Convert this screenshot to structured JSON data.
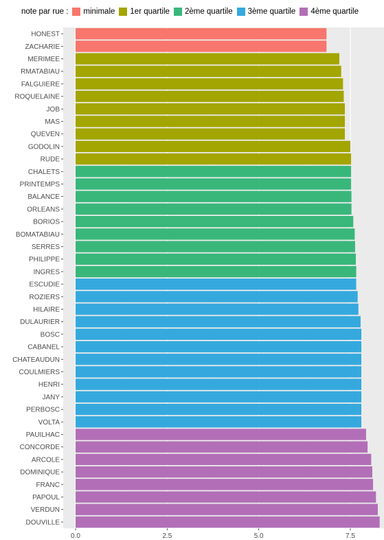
{
  "legend": {
    "title": "note par rue :",
    "position": "top",
    "entries": [
      {
        "label": "minimale",
        "color": "#F8766D"
      },
      {
        "label": "1er quartile",
        "color": "#A3A500"
      },
      {
        "label": "2ème quartile",
        "color": "#39B77A"
      },
      {
        "label": "3ème quartile",
        "color": "#35A9DE"
      },
      {
        "label": "4ème quartile",
        "color": "#B26FB7"
      }
    ]
  },
  "chart_data": {
    "type": "bar",
    "orientation": "horizontal",
    "title": "",
    "xlabel": "",
    "ylabel": "",
    "xlim": [
      0,
      8.3
    ],
    "x_ticks": [
      0.0,
      2.5,
      5.0,
      7.5
    ],
    "x_tick_labels": [
      "0.0",
      "2.5",
      "5.0",
      "7.5"
    ],
    "grid": true,
    "panel_background": "#EBEBEB",
    "categories": [
      "HONEST",
      "ZACHARIE",
      "MERIMEE",
      "RMATABIAU",
      "FALGUIERE",
      "ROQUELAINE",
      "JOB",
      "MAS",
      "QUEVEN",
      "GODOLIN",
      "RUDE",
      "CHALETS",
      "PRINTEMPS",
      "BALANCE",
      "ORLEANS",
      "BORIOS",
      "BOMATABIAU",
      "SERRES",
      "PHILIPPE",
      "INGRES",
      "ESCUDIE",
      "ROZIERS",
      "HILAIRE",
      "DULAURIER",
      "BOSC",
      "CABANEL",
      "CHATEAUDUN",
      "COULMIERS",
      "HENRI",
      "JANY",
      "PERBOSC",
      "VOLTA",
      "PAUILHAC",
      "CONCORDE",
      "ARCOLE",
      "DOMINIQUE",
      "FRANC",
      "PAPOUL",
      "VERDUN",
      "DOUVILLE"
    ],
    "values": [
      6.85,
      6.85,
      7.2,
      7.25,
      7.3,
      7.32,
      7.35,
      7.35,
      7.35,
      7.5,
      7.52,
      7.52,
      7.52,
      7.53,
      7.53,
      7.58,
      7.62,
      7.63,
      7.65,
      7.66,
      7.66,
      7.7,
      7.72,
      7.78,
      7.8,
      7.8,
      7.8,
      7.8,
      7.8,
      7.8,
      7.8,
      7.8,
      7.93,
      7.97,
      8.07,
      8.1,
      8.12,
      8.2,
      8.25,
      8.3
    ],
    "groups": [
      "minimale",
      "minimale",
      "1er quartile",
      "1er quartile",
      "1er quartile",
      "1er quartile",
      "1er quartile",
      "1er quartile",
      "1er quartile",
      "1er quartile",
      "1er quartile",
      "2ème quartile",
      "2ème quartile",
      "2ème quartile",
      "2ème quartile",
      "2ème quartile",
      "2ème quartile",
      "2ème quartile",
      "2ème quartile",
      "2ème quartile",
      "3ème quartile",
      "3ème quartile",
      "3ème quartile",
      "3ème quartile",
      "3ème quartile",
      "3ème quartile",
      "3ème quartile",
      "3ème quartile",
      "3ème quartile",
      "3ème quartile",
      "3ème quartile",
      "3ème quartile",
      "4ème quartile",
      "4ème quartile",
      "4ème quartile",
      "4ème quartile",
      "4ème quartile",
      "4ème quartile",
      "4ème quartile",
      "4ème quartile"
    ]
  }
}
